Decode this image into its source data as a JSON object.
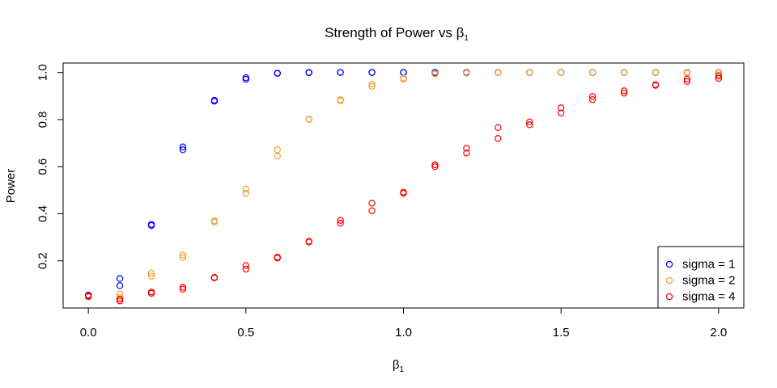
{
  "chart_data": {
    "type": "scatter",
    "title": "Strength of Power vs β₁",
    "xlabel": "β₁",
    "ylabel": "Power",
    "xlim": [
      -0.08,
      2.08
    ],
    "ylim": [
      0.0,
      1.04
    ],
    "xticks": [
      "0.0",
      "0.5",
      "1.0",
      "1.5",
      "2.0"
    ],
    "xtick_values": [
      0.0,
      0.5,
      1.0,
      1.5,
      2.0
    ],
    "yticks": [
      "0.2",
      "0.4",
      "0.6",
      "0.8",
      "1.0"
    ],
    "ytick_values": [
      0.2,
      0.4,
      0.6,
      0.8,
      1.0
    ],
    "grid": false,
    "legend_position": "bottom-right",
    "marker": "open-circle",
    "series": [
      {
        "name": "sigma = 1",
        "color": "#0000ff",
        "points": [
          [
            0.0,
            0.05
          ],
          [
            0.0,
            0.055
          ],
          [
            0.1,
            0.095
          ],
          [
            0.1,
            0.125
          ],
          [
            0.2,
            0.35
          ],
          [
            0.2,
            0.355
          ],
          [
            0.3,
            0.672
          ],
          [
            0.3,
            0.684
          ],
          [
            0.4,
            0.878
          ],
          [
            0.4,
            0.882
          ],
          [
            0.5,
            0.971
          ],
          [
            0.5,
            0.978
          ],
          [
            0.6,
            0.996
          ],
          [
            0.6,
            0.997
          ],
          [
            0.7,
            0.999
          ],
          [
            0.7,
            1.0
          ],
          [
            0.8,
            1.0
          ],
          [
            0.8,
            1.0
          ],
          [
            0.9,
            1.0
          ],
          [
            0.9,
            1.0
          ],
          [
            1.0,
            1.0
          ],
          [
            1.0,
            1.0
          ],
          [
            1.1,
            1.0
          ],
          [
            1.1,
            1.0
          ],
          [
            1.2,
            1.0
          ],
          [
            1.2,
            1.0
          ],
          [
            1.3,
            1.0
          ],
          [
            1.3,
            1.0
          ],
          [
            1.4,
            1.0
          ],
          [
            1.4,
            1.0
          ],
          [
            1.5,
            1.0
          ],
          [
            1.5,
            1.0
          ],
          [
            1.6,
            1.0
          ],
          [
            1.6,
            1.0
          ],
          [
            1.7,
            1.0
          ],
          [
            1.7,
            1.0
          ],
          [
            1.8,
            1.0
          ],
          [
            1.8,
            1.0
          ],
          [
            1.9,
            1.0
          ],
          [
            1.9,
            1.0
          ],
          [
            2.0,
            1.0
          ],
          [
            2.0,
            1.0
          ]
        ]
      },
      {
        "name": "sigma = 2",
        "color": "#f0a030",
        "points": [
          [
            0.0,
            0.05
          ],
          [
            0.0,
            0.052
          ],
          [
            0.1,
            0.045
          ],
          [
            0.1,
            0.06
          ],
          [
            0.2,
            0.135
          ],
          [
            0.2,
            0.148
          ],
          [
            0.3,
            0.215
          ],
          [
            0.3,
            0.225
          ],
          [
            0.4,
            0.365
          ],
          [
            0.4,
            0.37
          ],
          [
            0.5,
            0.487
          ],
          [
            0.5,
            0.505
          ],
          [
            0.6,
            0.645
          ],
          [
            0.6,
            0.672
          ],
          [
            0.7,
            0.8
          ],
          [
            0.7,
            0.802
          ],
          [
            0.8,
            0.88
          ],
          [
            0.8,
            0.884
          ],
          [
            0.9,
            0.941
          ],
          [
            0.9,
            0.95
          ],
          [
            1.0,
            0.972
          ],
          [
            1.0,
            0.976
          ],
          [
            1.1,
            0.993
          ],
          [
            1.1,
            0.996
          ],
          [
            1.2,
            0.997
          ],
          [
            1.2,
            0.998
          ],
          [
            1.3,
            0.999
          ],
          [
            1.3,
            1.0
          ],
          [
            1.4,
            1.0
          ],
          [
            1.4,
            1.0
          ],
          [
            1.5,
            1.0
          ],
          [
            1.5,
            1.0
          ],
          [
            1.6,
            1.0
          ],
          [
            1.6,
            1.0
          ],
          [
            1.7,
            1.0
          ],
          [
            1.7,
            1.0
          ],
          [
            1.8,
            1.0
          ],
          [
            1.8,
            1.0
          ],
          [
            1.9,
            0.997
          ],
          [
            1.9,
            1.0
          ],
          [
            2.0,
            0.99
          ],
          [
            2.0,
            1.0
          ]
        ]
      },
      {
        "name": "sigma = 4",
        "color": "#ff0000",
        "points": [
          [
            0.0,
            0.048
          ],
          [
            0.0,
            0.053
          ],
          [
            0.1,
            0.03
          ],
          [
            0.1,
            0.038
          ],
          [
            0.2,
            0.062
          ],
          [
            0.2,
            0.068
          ],
          [
            0.3,
            0.08
          ],
          [
            0.3,
            0.088
          ],
          [
            0.4,
            0.128
          ],
          [
            0.4,
            0.13
          ],
          [
            0.5,
            0.165
          ],
          [
            0.5,
            0.18
          ],
          [
            0.6,
            0.212
          ],
          [
            0.6,
            0.216
          ],
          [
            0.7,
            0.28
          ],
          [
            0.7,
            0.283
          ],
          [
            0.8,
            0.36
          ],
          [
            0.8,
            0.372
          ],
          [
            0.9,
            0.413
          ],
          [
            0.9,
            0.445
          ],
          [
            1.0,
            0.487
          ],
          [
            1.0,
            0.492
          ],
          [
            1.1,
            0.6
          ],
          [
            1.1,
            0.608
          ],
          [
            1.2,
            0.658
          ],
          [
            1.2,
            0.678
          ],
          [
            1.3,
            0.72
          ],
          [
            1.3,
            0.766
          ],
          [
            1.4,
            0.778
          ],
          [
            1.4,
            0.79
          ],
          [
            1.5,
            0.828
          ],
          [
            1.5,
            0.85
          ],
          [
            1.6,
            0.885
          ],
          [
            1.6,
            0.898
          ],
          [
            1.7,
            0.912
          ],
          [
            1.7,
            0.922
          ],
          [
            1.8,
            0.945
          ],
          [
            1.8,
            0.948
          ],
          [
            1.9,
            0.962
          ],
          [
            1.9,
            0.972
          ],
          [
            2.0,
            0.975
          ],
          [
            2.0,
            0.985
          ]
        ]
      }
    ]
  }
}
